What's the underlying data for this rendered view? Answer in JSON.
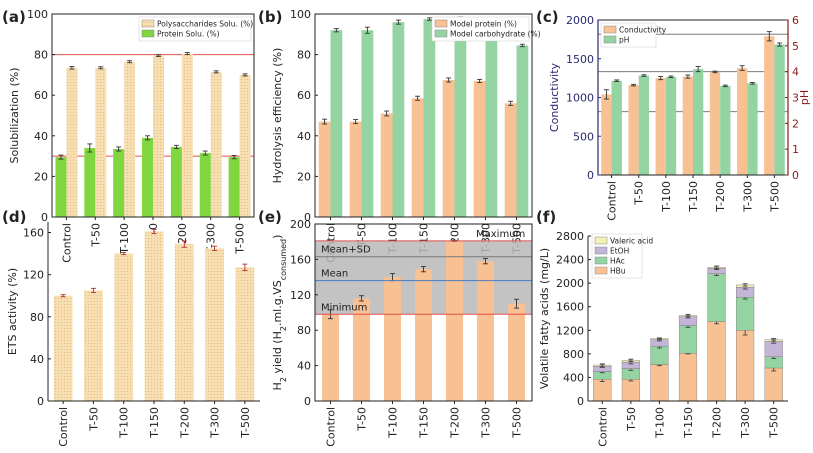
{
  "figure": {
    "panel_labels": [
      "(a)",
      "(b)",
      "(c)",
      "(d)",
      "(e)",
      "(f)"
    ]
  },
  "colors": {
    "beige": "#f5d9a8",
    "beige_dot": "#e6bb78",
    "green": "#7fd63f",
    "peach": "#f8c194",
    "mint": "#93d4a2",
    "purple": "#c3b4d8",
    "pale_yellow": "#f3f1b6",
    "axis": "#222222",
    "conductivity_axis": "#2a2a6e",
    "ph_axis": "#8b1a1a",
    "red_line": "#e05050",
    "blue_line": "#4a7ec2",
    "shade": "#b8b8b8"
  },
  "chart_data": [
    {
      "id": "a",
      "type": "bar",
      "panel_label": "(a)",
      "ylabel": "Solubilization (%)",
      "ylim": [
        0,
        100
      ],
      "yticks": [
        0,
        20,
        40,
        60,
        80,
        100
      ],
      "categories": [
        "Control",
        "T-50",
        "T-100",
        "T-150",
        "T-200",
        "T-300",
        "T-500"
      ],
      "series": [
        {
          "name": "Polysaccharides Solu. (%)",
          "values": [
            73.5,
            73.5,
            76.5,
            79.5,
            80.5,
            71.5,
            70
          ],
          "errors": [
            0.6,
            0.5,
            0.5,
            0.4,
            0.5,
            0.5,
            0.5
          ]
        },
        {
          "name": "Protein Solu. (%)",
          "values": [
            29.5,
            34,
            33.5,
            39,
            34.5,
            31.5,
            29.5
          ],
          "errors": [
            1.0,
            2.0,
            1.0,
            1.0,
            0.8,
            1.0,
            0.8
          ]
        }
      ],
      "hlines": [
        80,
        30
      ],
      "legend": "top-right"
    },
    {
      "id": "b",
      "type": "bar",
      "panel_label": "(b)",
      "ylabel": "Hydrolysis efficiency (%)",
      "ylim": [
        0,
        100
      ],
      "yticks": [
        0,
        20,
        40,
        60,
        80,
        100
      ],
      "categories": [
        "Control",
        "T-50",
        "T-100",
        "T-150",
        "T-200",
        "T-300",
        "T-500"
      ],
      "series": [
        {
          "name": "Model protein (%)",
          "values": [
            47,
            47,
            51,
            58.5,
            67.5,
            67,
            56
          ],
          "errors": [
            1.2,
            1.0,
            1.2,
            1.0,
            1.0,
            0.8,
            1.0
          ]
        },
        {
          "name": "Model carbohydrate (%)",
          "values": [
            92,
            92,
            96,
            97.5,
            97,
            91,
            84.5
          ],
          "errors": [
            0.8,
            1.5,
            1.0,
            0.6,
            1.5,
            2.5,
            0.6
          ]
        }
      ],
      "legend": "top-right"
    },
    {
      "id": "c",
      "type": "bar",
      "panel_label": "(c)",
      "ylabel": "Conductivity",
      "y2label": "pH",
      "ylim": [
        0,
        2000
      ],
      "yticks": [
        0,
        500,
        1000,
        1500,
        2000
      ],
      "y2lim": [
        0,
        6
      ],
      "y2ticks": [
        0,
        1,
        2,
        3,
        4,
        5,
        6
      ],
      "categories": [
        "Control",
        "T-50",
        "T-100",
        "T-150",
        "T-200",
        "T-300",
        "T-500"
      ],
      "series": [
        {
          "name": "Conductivity",
          "axis": "left",
          "values": [
            1040,
            1160,
            1250,
            1270,
            1330,
            1380,
            1790
          ],
          "errors": [
            60,
            10,
            20,
            20,
            10,
            30,
            60
          ]
        },
        {
          "name": "pH",
          "axis": "right",
          "values": [
            3.65,
            3.85,
            3.8,
            4.1,
            3.45,
            3.55,
            5.05
          ],
          "errors": [
            0.03,
            0.03,
            0.03,
            0.1,
            0.03,
            0.03,
            0.06
          ]
        }
      ],
      "hlines_right": [
        5.45,
        4.0,
        2.45
      ],
      "legend": "top-left"
    },
    {
      "id": "d",
      "type": "bar",
      "panel_label": "(d)",
      "ylabel": "ETS activity (%)",
      "ylim": [
        0,
        170
      ],
      "yticks": [
        0,
        40,
        80,
        120,
        160
      ],
      "categories": [
        "Control",
        "T-50",
        "T-100",
        "T-150",
        "T-200",
        "T-300",
        "T-500"
      ],
      "series": [
        {
          "name": "ETS activity",
          "values": [
            100,
            105,
            140,
            161,
            149,
            145,
            127
          ],
          "errors": [
            1,
            2,
            1,
            2,
            3,
            2,
            3
          ]
        }
      ]
    },
    {
      "id": "e",
      "type": "bar",
      "panel_label": "(e)",
      "ylabel_main": "H",
      "ylabel_sub2": "2",
      "ylabel_mid": " yield (H",
      "ylabel_sub2b": "2",
      "ylabel_tail": ".ml.g.VS",
      "ylabel_sub": "consumed",
      "ylabel_end": ")",
      "ylim": [
        0,
        200
      ],
      "yticks": [
        0,
        40,
        80,
        120,
        160,
        200
      ],
      "categories": [
        "Control",
        "T-50",
        "T-100",
        "T-150",
        "T-200",
        "T-300",
        "T-500"
      ],
      "series": [
        {
          "name": "H2 yield",
          "values": [
            98,
            116,
            140,
            149,
            181,
            158,
            110
          ],
          "errors": [
            5,
            3,
            4,
            3,
            0.5,
            3,
            5
          ]
        }
      ],
      "band": [
        98,
        181
      ],
      "reference_lines": [
        {
          "label": "Maximum",
          "value": 181
        },
        {
          "label": "Mean+SD",
          "value": 163
        },
        {
          "label": "Mean",
          "value": 136
        },
        {
          "label": "Minimum",
          "value": 98
        }
      ]
    },
    {
      "id": "f",
      "type": "stacked-bar",
      "panel_label": "(f)",
      "ylabel": "Volatile fatty acids (mg/L)",
      "ylim": [
        0,
        2800
      ],
      "yticks": [
        0,
        400,
        800,
        1200,
        1600,
        2000,
        2400,
        2800
      ],
      "categories": [
        "Control",
        "T-50",
        "T-100",
        "T-150",
        "T-200",
        "T-300",
        "T-500"
      ],
      "series": [
        {
          "name": "HBu",
          "values": [
            370,
            370,
            620,
            810,
            1350,
            1200,
            560
          ]
        },
        {
          "name": "HAc",
          "values": [
            130,
            180,
            310,
            470,
            810,
            560,
            190
          ]
        },
        {
          "name": "EtOH",
          "values": [
            90,
            110,
            110,
            150,
            90,
            170,
            260
          ]
        },
        {
          "name": "Valeric acid",
          "values": [
            20,
            30,
            20,
            20,
            20,
            40,
            30
          ]
        }
      ],
      "errors": [
        [
          40,
          30,
          20,
          10,
          40,
          80,
          50
        ],
        [
          20,
          30,
          30,
          30,
          30,
          30,
          30
        ],
        [
          20,
          30,
          20,
          20,
          20,
          30,
          30
        ],
        [
          20,
          20,
          10,
          20,
          20,
          20,
          20
        ]
      ],
      "legend": "top-left"
    }
  ]
}
